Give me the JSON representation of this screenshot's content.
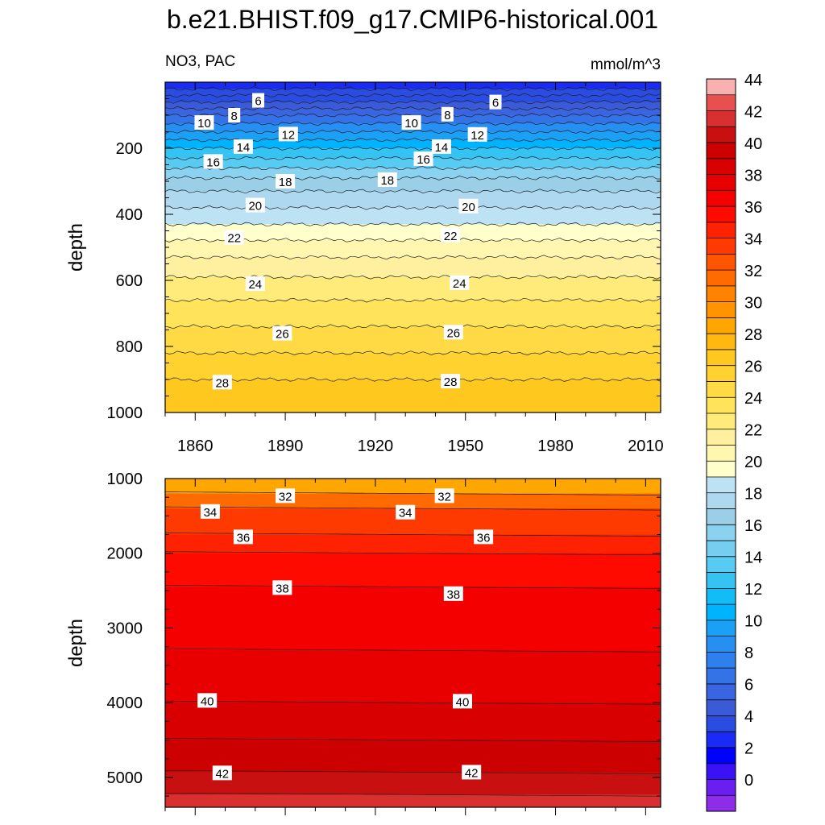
{
  "chart_data": {
    "type": "heatmap",
    "title": "b.e21.BHIST.f09_g17.CMIP6-historical.001",
    "subtitle_left": "NO3, PAC",
    "subtitle_right": "mmol/m^3",
    "colorbar": {
      "levels": [
        0,
        1,
        2,
        3,
        4,
        5,
        6,
        7,
        8,
        9,
        10,
        11,
        12,
        13,
        14,
        15,
        16,
        17,
        18,
        19,
        20,
        21,
        22,
        23,
        24,
        25,
        26,
        27,
        28,
        29,
        30,
        31,
        32,
        33,
        34,
        35,
        36,
        37,
        38,
        39,
        40,
        41,
        42,
        43,
        44,
        45
      ],
      "tick_labels": [
        "0",
        "2",
        "4",
        "6",
        "8",
        "10",
        "12",
        "14",
        "16",
        "18",
        "20",
        "22",
        "24",
        "26",
        "28",
        "30",
        "32",
        "34",
        "36",
        "38",
        "40",
        "42",
        "44"
      ],
      "colors": [
        "#8e2de8",
        "#6a1ff0",
        "#3a12f5",
        "#0000ff",
        "#1a2bf5",
        "#2a4ce0",
        "#3b5ad8",
        "#3a64e0",
        "#3472e8",
        "#2d80ee",
        "#2590f2",
        "#1aa0f5",
        "#00b3ff",
        "#12bdf7",
        "#35c3f3",
        "#58cbf3",
        "#75cdf0",
        "#8ad2f0",
        "#9bcfe8",
        "#aed8ef",
        "#bde2f3",
        "#ffffcc",
        "#fff7b0",
        "#fff0a0",
        "#ffeb7a",
        "#ffe35a",
        "#ffda44",
        "#ffd22f",
        "#ffc81e",
        "#ffb810",
        "#ffa600",
        "#ff9400",
        "#ff8200",
        "#ff6b00",
        "#ff5500",
        "#ff3a00",
        "#ff2200",
        "#ff0a00",
        "#f50000",
        "#e80000",
        "#d80000",
        "#cc0000",
        "#c81010",
        "#d83030",
        "#e85050",
        "#f8b0b0"
      ]
    },
    "panels": [
      {
        "name": "upper",
        "ylabel": "depth",
        "ylim": [
          1000,
          0
        ],
        "y_ticks": [
          200,
          400,
          600,
          800,
          1000
        ],
        "xlim": [
          1850,
          2015
        ],
        "x_ticks": [
          1860,
          1890,
          1920,
          1950,
          1980,
          2010
        ],
        "bands": [
          {
            "depth": 0,
            "value": 4
          },
          {
            "depth": 20,
            "value": 4.6
          },
          {
            "depth": 40,
            "value": 5.5
          },
          {
            "depth": 60,
            "value": 6.3
          },
          {
            "depth": 80,
            "value": 7.3
          },
          {
            "depth": 100,
            "value": 8.3
          },
          {
            "depth": 125,
            "value": 9.6
          },
          {
            "depth": 150,
            "value": 11
          },
          {
            "depth": 175,
            "value": 12.3
          },
          {
            "depth": 200,
            "value": 13.5
          },
          {
            "depth": 230,
            "value": 15.2
          },
          {
            "depth": 260,
            "value": 16.7
          },
          {
            "depth": 290,
            "value": 18
          },
          {
            "depth": 330,
            "value": 19.2
          },
          {
            "depth": 380,
            "value": 20.2
          },
          {
            "depth": 430,
            "value": 21.1
          },
          {
            "depth": 478,
            "value": 22
          },
          {
            "depth": 530,
            "value": 23
          },
          {
            "depth": 590,
            "value": 24
          },
          {
            "depth": 660,
            "value": 25
          },
          {
            "depth": 740,
            "value": 26
          },
          {
            "depth": 820,
            "value": 27
          },
          {
            "depth": 900,
            "value": 28
          },
          {
            "depth": 1000,
            "value": 29
          }
        ],
        "contour_labels": [
          {
            "year": 1881,
            "depth": 55,
            "text": "6"
          },
          {
            "year": 1960,
            "depth": 60,
            "text": "6"
          },
          {
            "year": 1873,
            "depth": 100,
            "text": "8"
          },
          {
            "year": 1944,
            "depth": 97,
            "text": "8"
          },
          {
            "year": 1863,
            "depth": 122,
            "text": "10"
          },
          {
            "year": 1932,
            "depth": 122,
            "text": "10"
          },
          {
            "year": 1891,
            "depth": 157,
            "text": "12"
          },
          {
            "year": 1954,
            "depth": 158,
            "text": "12"
          },
          {
            "year": 1876,
            "depth": 195,
            "text": "14"
          },
          {
            "year": 1942,
            "depth": 195,
            "text": "14"
          },
          {
            "year": 1866,
            "depth": 240,
            "text": "16"
          },
          {
            "year": 1936,
            "depth": 232,
            "text": "16"
          },
          {
            "year": 1890,
            "depth": 300,
            "text": "18"
          },
          {
            "year": 1924,
            "depth": 295,
            "text": "18"
          },
          {
            "year": 1880,
            "depth": 372,
            "text": "20"
          },
          {
            "year": 1951,
            "depth": 375,
            "text": "20"
          },
          {
            "year": 1873,
            "depth": 470,
            "text": "22"
          },
          {
            "year": 1945,
            "depth": 463,
            "text": "22"
          },
          {
            "year": 1880,
            "depth": 610,
            "text": "24"
          },
          {
            "year": 1948,
            "depth": 607,
            "text": "24"
          },
          {
            "year": 1889,
            "depth": 760,
            "text": "26"
          },
          {
            "year": 1946,
            "depth": 757,
            "text": "26"
          },
          {
            "year": 1869,
            "depth": 908,
            "text": "28"
          },
          {
            "year": 1945,
            "depth": 905,
            "text": "28"
          }
        ]
      },
      {
        "name": "lower",
        "ylabel": "depth",
        "ylim": [
          1000,
          5400
        ],
        "y_ticks": [
          1000,
          2000,
          3000,
          4000,
          5000
        ],
        "xlim": [
          1850,
          2015
        ],
        "bands": [
          {
            "depth": 1000,
            "value": 29.8
          },
          {
            "depth": 1200,
            "value": 32
          },
          {
            "depth": 1400,
            "value": 34
          },
          {
            "depth": 1750,
            "value": 36
          },
          {
            "depth": 2000,
            "value": 37
          },
          {
            "depth": 2450,
            "value": 38
          },
          {
            "depth": 3300,
            "value": 39
          },
          {
            "depth": 4000,
            "value": 40
          },
          {
            "depth": 4500,
            "value": 41
          },
          {
            "depth": 4930,
            "value": 42
          },
          {
            "depth": 5230,
            "value": 43
          },
          {
            "depth": 5400,
            "value": 43.5
          }
        ],
        "contour_labels": [
          {
            "year": 1890,
            "depth": 1230,
            "text": "32"
          },
          {
            "year": 1943,
            "depth": 1230,
            "text": "32"
          },
          {
            "year": 1865,
            "depth": 1440,
            "text": "34"
          },
          {
            "year": 1930,
            "depth": 1450,
            "text": "34"
          },
          {
            "year": 1876,
            "depth": 1780,
            "text": "36"
          },
          {
            "year": 1956,
            "depth": 1780,
            "text": "36"
          },
          {
            "year": 1889,
            "depth": 2460,
            "text": "38"
          },
          {
            "year": 1946,
            "depth": 2540,
            "text": "38"
          },
          {
            "year": 1864,
            "depth": 3970,
            "text": "40"
          },
          {
            "year": 1949,
            "depth": 3980,
            "text": "40"
          },
          {
            "year": 1869,
            "depth": 4940,
            "text": "42"
          },
          {
            "year": 1952,
            "depth": 4930,
            "text": "42"
          }
        ]
      }
    ]
  }
}
